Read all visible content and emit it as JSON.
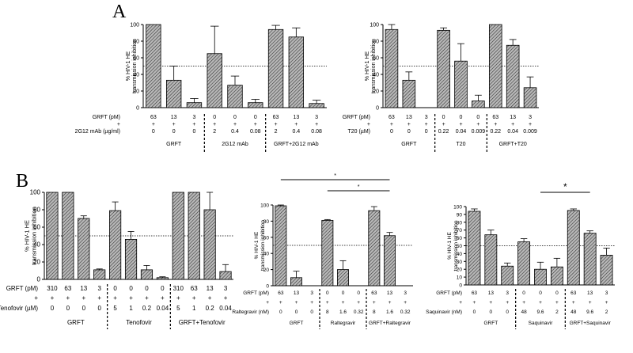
{
  "panels": [
    {
      "letter": "A"
    },
    {
      "letter": "B"
    }
  ],
  "hatch_fill": "#b8b8b8",
  "chart_data": [
    {
      "type": "bar",
      "ylabel": "% HIV-1 HE transmission inhibition",
      "ylim": [
        0,
        100
      ],
      "yticks": [
        "0",
        "20",
        "40",
        "60",
        "80",
        "100"
      ],
      "ref_line": 50,
      "row_labels": [
        "GRFT (pM)",
        "2G12 mAb (µg/ml)"
      ],
      "rows": [
        [
          "63",
          "13",
          "3",
          "0",
          "0",
          "0",
          "63",
          "13",
          "3"
        ],
        [
          "0",
          "0",
          "0",
          "2",
          "0.4",
          "0.08",
          "2",
          "0.4",
          "0.08"
        ]
      ],
      "values": [
        100,
        33,
        6,
        65,
        27,
        6,
        94,
        85,
        5
      ],
      "errors": [
        0,
        17,
        5,
        33,
        11,
        4,
        5,
        11,
        4
      ],
      "groups": [
        {
          "label": "GRFT",
          "count": 3
        },
        {
          "label": "2G12 mAb",
          "count": 3
        },
        {
          "label": "GRFT+2G12 mAb",
          "count": 3
        }
      ]
    },
    {
      "type": "bar",
      "ylabel": "% HIV-1 HE transmission inhibition",
      "ylim": [
        0,
        100
      ],
      "yticks": [
        "0",
        "20",
        "40",
        "60",
        "80",
        "100"
      ],
      "ref_line": 50,
      "row_labels": [
        "GRFT (pM)",
        "T20 (µM)"
      ],
      "rows": [
        [
          "63",
          "13",
          "3",
          "0",
          "0",
          "0",
          "63",
          "13",
          "3"
        ],
        [
          "0",
          "0",
          "0",
          "0.22",
          "0.04",
          "0.009",
          "0.22",
          "0.04",
          "0.009"
        ]
      ],
      "values": [
        94,
        33,
        0,
        93,
        56,
        8,
        100,
        75,
        24
      ],
      "errors": [
        6,
        10,
        0,
        3,
        21,
        7,
        0,
        7,
        13
      ],
      "groups": [
        {
          "label": "GRFT",
          "count": 3
        },
        {
          "label": "T20",
          "count": 3
        },
        {
          "label": "GRFT+T20",
          "count": 3
        }
      ]
    },
    {
      "type": "bar",
      "ylabel": "% HIV-1 HE transmission inhibition",
      "ylim": [
        0,
        100
      ],
      "yticks": [
        "0",
        "20",
        "40",
        "60",
        "80",
        "100"
      ],
      "ref_line": 50,
      "row_labels": [
        "GRFT (pM)",
        "Tenofovir (µM)"
      ],
      "rows": [
        [
          "310",
          "63",
          "13",
          "3",
          "0",
          "0",
          "0",
          "0",
          "310",
          "63",
          "13",
          "3"
        ],
        [
          "0",
          "0",
          "0",
          "0",
          "5",
          "1",
          "0.2",
          "0.04",
          "5",
          "1",
          "0.2",
          "0.04"
        ]
      ],
      "values": [
        100,
        100,
        70,
        11,
        79,
        46,
        11,
        2,
        100,
        100,
        80,
        9
      ],
      "errors": [
        0,
        0,
        3,
        1,
        10,
        9,
        5,
        1,
        0,
        0,
        20,
        8
      ],
      "groups": [
        {
          "label": "GRFT",
          "count": 4
        },
        {
          "label": "Tenofovir",
          "count": 4
        },
        {
          "label": "GRFT+Tenofovir",
          "count": 4
        }
      ]
    },
    {
      "type": "bar",
      "ylabel": "% HIV-1 HE transmission inhibition",
      "ylim": [
        0,
        100
      ],
      "yticks": [
        "0",
        "20",
        "40",
        "60",
        "80",
        "100"
      ],
      "ref_line": 50,
      "row_labels": [
        "GRFT (pM)",
        "Raltegravir (nM)"
      ],
      "rows": [
        [
          "63",
          "13",
          "3",
          "0",
          "0",
          "0",
          "63",
          "13",
          "3"
        ],
        [
          "0",
          "0",
          "0",
          "8",
          "1.6",
          "0.32",
          "8",
          "1.6",
          "0.32"
        ]
      ],
      "values": [
        99,
        10,
        0,
        81,
        20,
        0,
        93,
        62,
        0
      ],
      "errors": [
        1,
        8,
        0,
        1,
        11,
        0,
        5,
        4,
        0
      ],
      "groups": [
        {
          "label": "GRFT",
          "count": 3
        },
        {
          "label": "Raltegravir",
          "count": 3
        },
        {
          "label": "GRFT+Raltegravir",
          "count": 3
        }
      ],
      "significance": [
        {
          "from": 0,
          "to": 7,
          "label": "*"
        },
        {
          "from": 3,
          "to": 7,
          "label": "*"
        }
      ]
    },
    {
      "type": "bar",
      "ylabel": "% HIV-1 HE transmission inhibition",
      "ylim": [
        0,
        100
      ],
      "yticks": [
        "0",
        "10",
        "20",
        "30",
        "40",
        "50",
        "60",
        "70",
        "80",
        "90",
        "100"
      ],
      "ref_line": 50,
      "row_labels": [
        "GRFT (pM)",
        "Saquinavir (nM)"
      ],
      "rows": [
        [
          "63",
          "13",
          "3",
          "0",
          "0",
          "0",
          "63",
          "13",
          "3"
        ],
        [
          "0",
          "0",
          "0",
          "48",
          "9.6",
          "2",
          "48",
          "9.6",
          "2"
        ]
      ],
      "values": [
        94,
        64,
        24,
        55,
        20,
        23,
        95,
        66,
        38
      ],
      "errors": [
        3,
        6,
        4,
        4,
        9,
        11,
        2,
        3,
        9
      ],
      "groups": [
        {
          "label": "GRFT",
          "count": 3
        },
        {
          "label": "Saquinavir",
          "count": 3
        },
        {
          "label": "GRFT+Saquinavir",
          "count": 3
        }
      ],
      "significance": [
        {
          "from": 4,
          "to": 7,
          "label": "*"
        }
      ]
    }
  ]
}
